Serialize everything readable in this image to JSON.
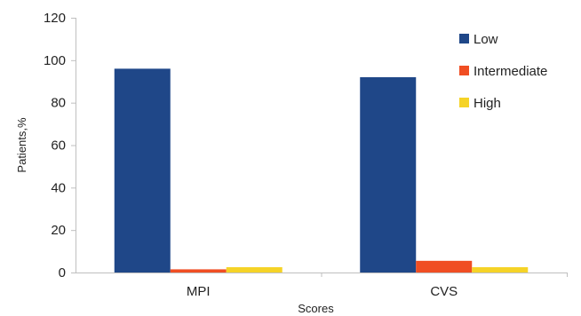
{
  "chart_data": {
    "type": "bar",
    "title": "",
    "xlabel": "Scores",
    "ylabel": "Patients,%",
    "categories": [
      "MPI",
      "CVS"
    ],
    "series": [
      {
        "name": "Low",
        "values": [
          96,
          92
        ],
        "color": "#1f4788"
      },
      {
        "name": "Intermediate",
        "values": [
          1.5,
          5.5
        ],
        "color": "#f04e23"
      },
      {
        "name": "High",
        "values": [
          2.5,
          2.5
        ],
        "color": "#f5d327"
      }
    ],
    "ylim": [
      0,
      120
    ],
    "yticks": [
      0,
      20,
      40,
      60,
      80,
      100,
      120
    ],
    "grid": false,
    "legend_position": "top-right"
  }
}
